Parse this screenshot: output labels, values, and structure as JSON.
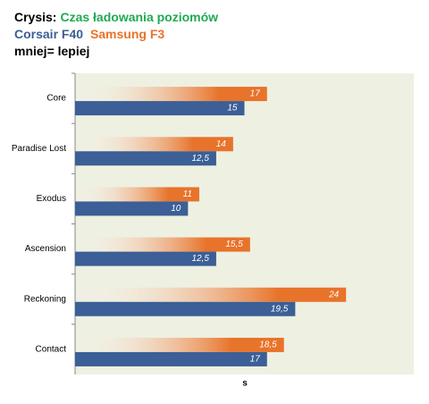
{
  "chart_data": {
    "type": "hbar",
    "title": "Crysis:",
    "subtitle": "Czas ładowania poziomów",
    "annotation": "mniej= lepiej",
    "x_label": "s",
    "categories": [
      "Core",
      "Paradise Lost",
      "Exodus",
      "Ascension",
      "Reckoning",
      "Contact"
    ],
    "series": [
      {
        "name": "Corsair F40",
        "color": "#3b5f96",
        "values": [
          15,
          12.5,
          10,
          12.5,
          19.5,
          17
        ],
        "value_labels": [
          "15",
          "12,5",
          "10",
          "12,5",
          "19,5",
          "17"
        ]
      },
      {
        "name": "Samsung F3",
        "color": "#e8732a",
        "values": [
          17,
          14,
          11,
          15.5,
          24,
          18.5
        ],
        "value_labels": [
          "17",
          "14",
          "11",
          "15,5",
          "24",
          "18,5"
        ]
      }
    ],
    "xlim": [
      0,
      30
    ]
  }
}
